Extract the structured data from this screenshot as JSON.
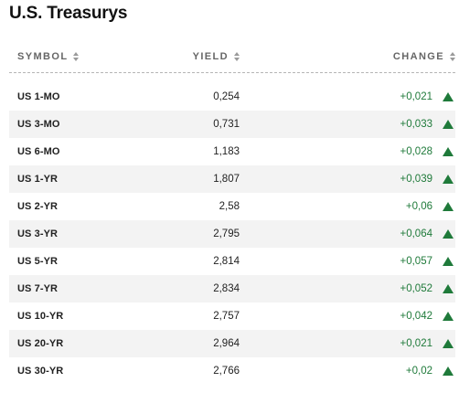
{
  "title": "U.S. Treasurys",
  "columns": {
    "symbol": "SYMBOL",
    "yield": "YIELD",
    "change": "CHANGE"
  },
  "colors": {
    "up": "#1f7a3a",
    "text": "#222222",
    "header": "#666666"
  },
  "rows": [
    {
      "symbol": "US 1-MO",
      "yield": "0,254",
      "change": "+0,021",
      "direction": "up"
    },
    {
      "symbol": "US 3-MO",
      "yield": "0,731",
      "change": "+0,033",
      "direction": "up"
    },
    {
      "symbol": "US 6-MO",
      "yield": "1,183",
      "change": "+0,028",
      "direction": "up"
    },
    {
      "symbol": "US 1-YR",
      "yield": "1,807",
      "change": "+0,039",
      "direction": "up"
    },
    {
      "symbol": "US 2-YR",
      "yield": "2,58",
      "change": "+0,06",
      "direction": "up"
    },
    {
      "symbol": "US 3-YR",
      "yield": "2,795",
      "change": "+0,064",
      "direction": "up"
    },
    {
      "symbol": "US 5-YR",
      "yield": "2,814",
      "change": "+0,057",
      "direction": "up"
    },
    {
      "symbol": "US 7-YR",
      "yield": "2,834",
      "change": "+0,052",
      "direction": "up"
    },
    {
      "symbol": "US 10-YR",
      "yield": "2,757",
      "change": "+0,042",
      "direction": "up"
    },
    {
      "symbol": "US 20-YR",
      "yield": "2,964",
      "change": "+0,021",
      "direction": "up"
    },
    {
      "symbol": "US 30-YR",
      "yield": "2,766",
      "change": "+0,02",
      "direction": "up"
    }
  ]
}
